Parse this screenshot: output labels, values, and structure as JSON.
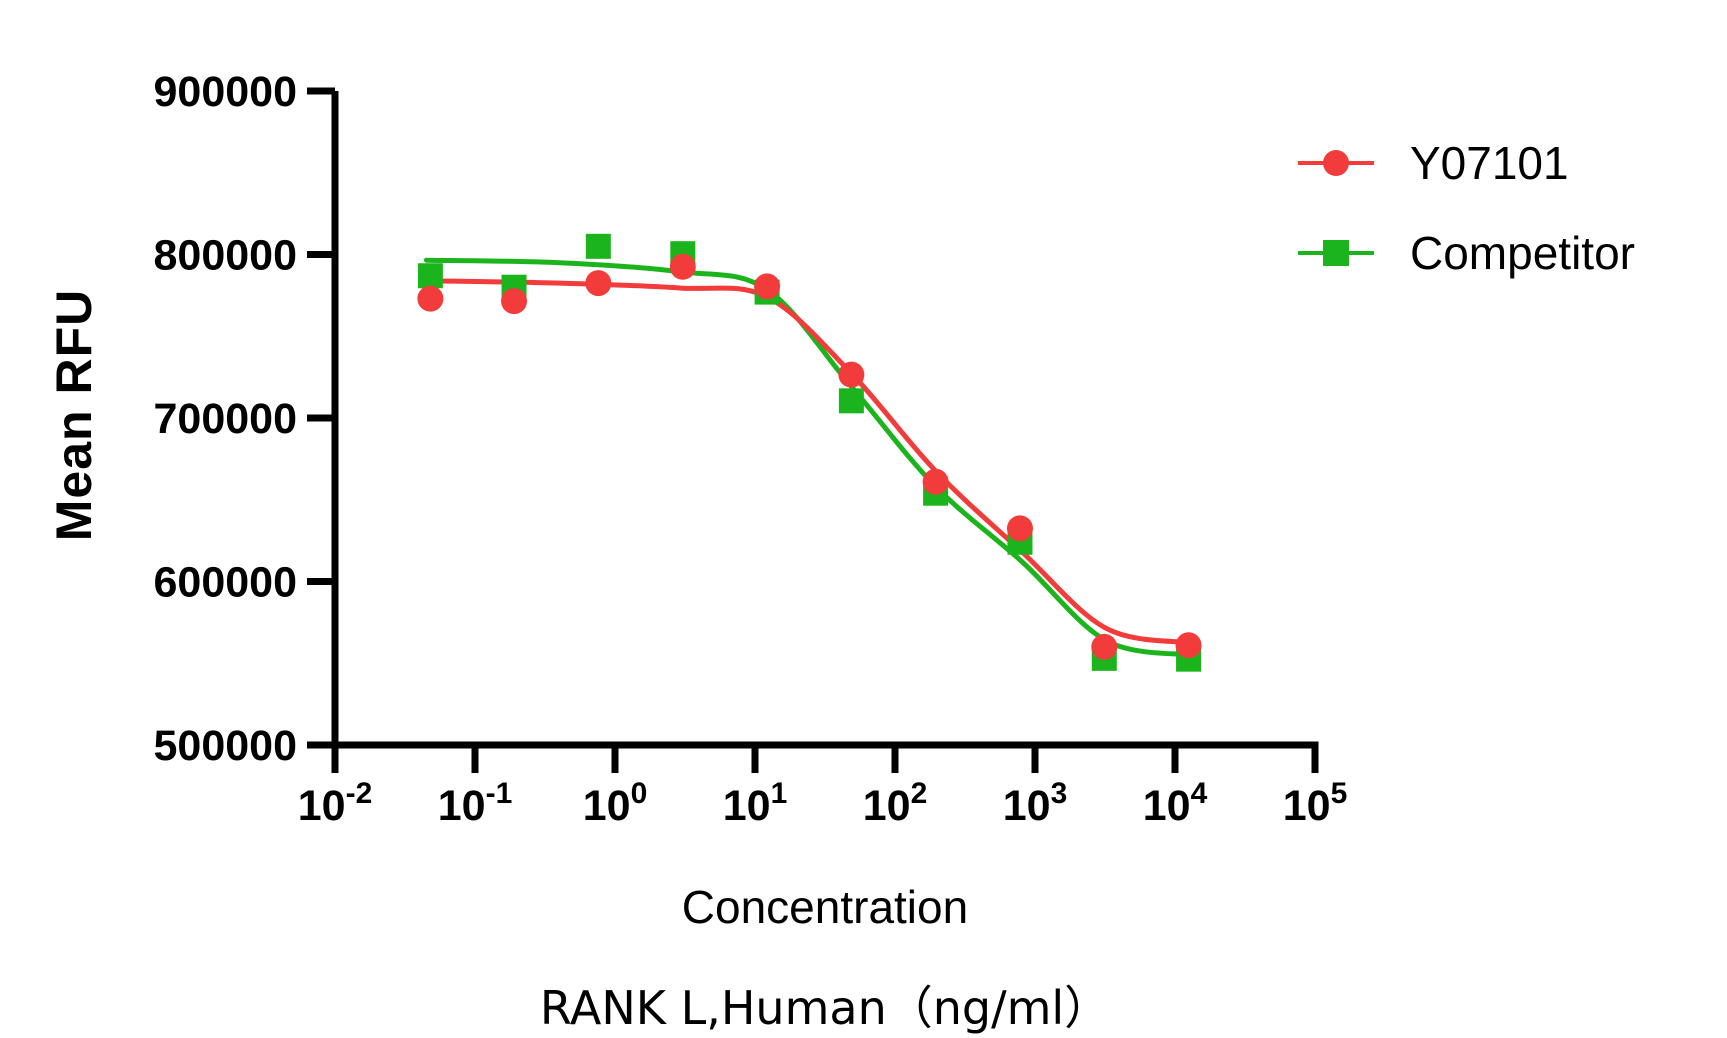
{
  "chart_data": {
    "type": "scatter",
    "subtype": "competitive-binding-dose-response-with-4PL-fit",
    "title": "",
    "y_axis": {
      "title": "Mean RFU",
      "min": 500000,
      "max": 900000,
      "ticks": [
        500000,
        600000,
        700000,
        800000,
        900000
      ]
    },
    "x_axis": {
      "title_line1": "Concentration",
      "title_line2": "RANK L,Human（ng/ml）",
      "scale": "log10",
      "unit": "ng/ml",
      "ticks": [
        {
          "base": "10",
          "exp": "-2",
          "value": 0.01
        },
        {
          "base": "10",
          "exp": "-1",
          "value": 0.1
        },
        {
          "base": "10",
          "exp": "0",
          "value": 1
        },
        {
          "base": "10",
          "exp": "1",
          "value": 10
        },
        {
          "base": "10",
          "exp": "2",
          "value": 100
        },
        {
          "base": "10",
          "exp": "3",
          "value": 1000
        },
        {
          "base": "10",
          "exp": "4",
          "value": 10000
        },
        {
          "base": "10",
          "exp": "5",
          "value": 100000
        }
      ]
    },
    "concentrations_ng_ml": [
      0.048,
      0.19,
      0.76,
      3.05,
      12.2,
      48.8,
      195,
      781,
      3125,
      12500
    ],
    "series": [
      {
        "name": "Y07101",
        "color": "#F23B3B",
        "marker": "circle",
        "rfu": [
          773000,
          771500,
          782500,
          792500,
          780500,
          726500,
          661000,
          632500,
          560000,
          561000
        ],
        "fit_curve": {
          "conc": [
            0.045,
            0.4,
            2.9,
            12.2,
            48.5,
            193,
            810,
            3200,
            12800
          ],
          "rfu": [
            784000,
            782500,
            779500,
            774000,
            727500,
            668000,
            618000,
            571500,
            562500
          ]
        }
      },
      {
        "name": "Competitor",
        "color": "#1CB41C",
        "marker": "square",
        "rfu": [
          787000,
          780000,
          805000,
          800500,
          777000,
          710500,
          654000,
          624000,
          553000,
          552500
        ],
        "fit_curve": {
          "conc": [
            0.045,
            0.4,
            2.9,
            12.2,
            48.5,
            193,
            810,
            3200,
            12800
          ],
          "rfu": [
            796500,
            795000,
            789500,
            778500,
            719500,
            658500,
            612000,
            564000,
            555000
          ]
        }
      }
    ],
    "legend": {
      "items": [
        "Y07101",
        "Competitor"
      ]
    }
  }
}
